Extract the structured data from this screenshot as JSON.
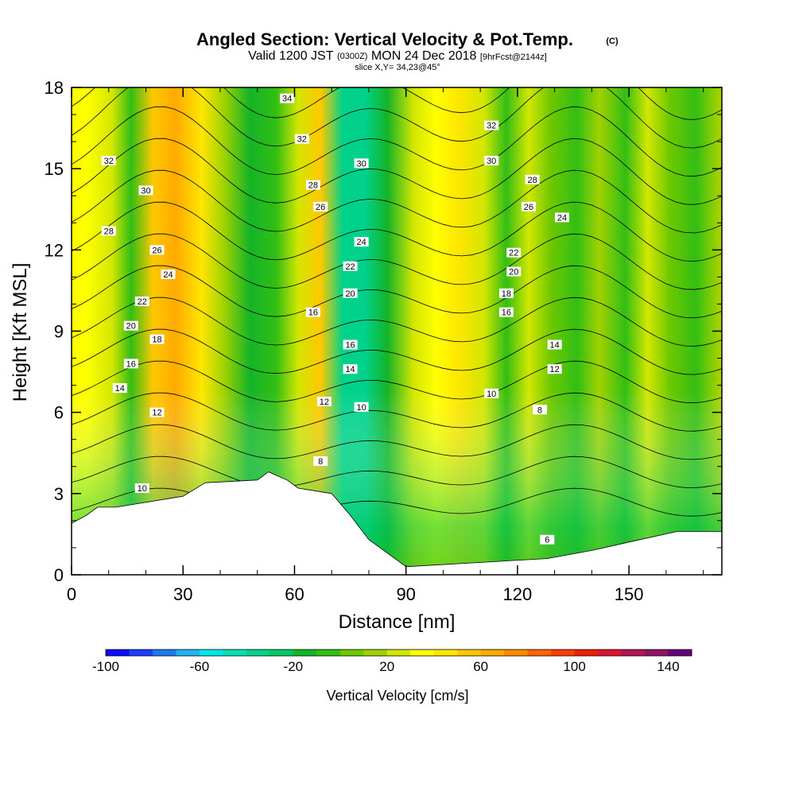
{
  "title": {
    "main": "Angled Section: Vertical Velocity & Pot.Temp.",
    "copyright": "(C)",
    "valid_prefix": "Valid 1200 JST",
    "valid_utc": "(0300Z)",
    "valid_date": "MON 24 Dec 2018",
    "forecast": "[9hrFcst@2144z]",
    "slice": "slice X,Y= 34,23@45°"
  },
  "chart_data": {
    "type": "heatmap",
    "description_fields": "filled vertical velocity with potential temperature contours over terrain",
    "xlabel": "Distance [nm]",
    "ylabel": "Height [Kft MSL]",
    "xlim": [
      0,
      175
    ],
    "ylim": [
      0,
      18
    ],
    "x_ticks": [
      0,
      30,
      60,
      90,
      120,
      150
    ],
    "y_ticks": [
      0,
      3,
      6,
      9,
      12,
      15,
      18
    ],
    "colorbar": {
      "label": "Vertical Velocity [cm/s]",
      "min": -100,
      "max": 150,
      "step": 10,
      "tick_values": [
        -100,
        -60,
        -20,
        20,
        60,
        100,
        140
      ],
      "colors": [
        "#0a0aff",
        "#1e3cff",
        "#1e78f0",
        "#1eb4f0",
        "#00e6e6",
        "#00e0b4",
        "#00d28c",
        "#00c864",
        "#14b428",
        "#32be14",
        "#6ec800",
        "#a0d200",
        "#d2e600",
        "#ffff00",
        "#ffe600",
        "#ffc800",
        "#ffaa00",
        "#ff8c00",
        "#ff6400",
        "#ff3c00",
        "#f01e00",
        "#dc1432",
        "#b41450",
        "#8c1464",
        "#640078"
      ]
    },
    "velocity_columns": [
      {
        "x": 4,
        "value": 30
      },
      {
        "x": 11,
        "value": 20
      },
      {
        "x": 16,
        "value": -10
      },
      {
        "x": 22,
        "value": 50
      },
      {
        "x": 28,
        "value": 60
      },
      {
        "x": 35,
        "value": 40
      },
      {
        "x": 41,
        "value": 10
      },
      {
        "x": 48,
        "value": -20
      },
      {
        "x": 55,
        "value": -10
      },
      {
        "x": 61,
        "value": 20
      },
      {
        "x": 67,
        "value": 50
      },
      {
        "x": 73,
        "value": -40
      },
      {
        "x": 79,
        "value": -40
      },
      {
        "x": 85,
        "value": -20
      },
      {
        "x": 92,
        "value": 20
      },
      {
        "x": 98,
        "value": 30
      },
      {
        "x": 104,
        "value": 40
      },
      {
        "x": 111,
        "value": 20
      },
      {
        "x": 117,
        "value": -10
      },
      {
        "x": 123,
        "value": 20
      },
      {
        "x": 129,
        "value": 0
      },
      {
        "x": 136,
        "value": -10
      },
      {
        "x": 142,
        "value": 10
      },
      {
        "x": 149,
        "value": -10
      },
      {
        "x": 155,
        "value": 20
      },
      {
        "x": 161,
        "value": 0
      },
      {
        "x": 168,
        "value": -10
      },
      {
        "x": 174,
        "value": 10
      }
    ],
    "terrain": [
      {
        "x": 0,
        "h": 1.9
      },
      {
        "x": 4,
        "h": 2.2
      },
      {
        "x": 7,
        "h": 2.5
      },
      {
        "x": 12,
        "h": 2.5
      },
      {
        "x": 30,
        "h": 2.9
      },
      {
        "x": 36,
        "h": 3.4
      },
      {
        "x": 50,
        "h": 3.5
      },
      {
        "x": 53,
        "h": 3.8
      },
      {
        "x": 58,
        "h": 3.5
      },
      {
        "x": 61,
        "h": 3.2
      },
      {
        "x": 70,
        "h": 3.0
      },
      {
        "x": 75,
        "h": 2.2
      },
      {
        "x": 80,
        "h": 1.3
      },
      {
        "x": 87,
        "h": 0.6
      },
      {
        "x": 90,
        "h": 0.3
      },
      {
        "x": 128,
        "h": 0.6
      },
      {
        "x": 140,
        "h": 0.9
      },
      {
        "x": 153,
        "h": 1.3
      },
      {
        "x": 163,
        "h": 1.6
      },
      {
        "x": 175,
        "h": 1.6
      }
    ],
    "contour_labels": [
      {
        "x": 58,
        "y": 17.6,
        "text": "34"
      },
      {
        "x": 10,
        "y": 15.3,
        "text": "32"
      },
      {
        "x": 62,
        "y": 16.1,
        "text": "32"
      },
      {
        "x": 113,
        "y": 16.6,
        "text": "32"
      },
      {
        "x": 20,
        "y": 14.2,
        "text": "30"
      },
      {
        "x": 78,
        "y": 15.2,
        "text": "30"
      },
      {
        "x": 113,
        "y": 15.3,
        "text": "30"
      },
      {
        "x": 65,
        "y": 14.4,
        "text": "28"
      },
      {
        "x": 124,
        "y": 14.6,
        "text": "28"
      },
      {
        "x": 10,
        "y": 12.7,
        "text": "28"
      },
      {
        "x": 67,
        "y": 13.6,
        "text": "26"
      },
      {
        "x": 123,
        "y": 13.6,
        "text": "26"
      },
      {
        "x": 23,
        "y": 12.0,
        "text": "26"
      },
      {
        "x": 78,
        "y": 12.3,
        "text": "24"
      },
      {
        "x": 132,
        "y": 13.2,
        "text": "24"
      },
      {
        "x": 26,
        "y": 11.1,
        "text": "24"
      },
      {
        "x": 119,
        "y": 11.9,
        "text": "22"
      },
      {
        "x": 75,
        "y": 11.4,
        "text": "22"
      },
      {
        "x": 19,
        "y": 10.1,
        "text": "22"
      },
      {
        "x": 119,
        "y": 11.2,
        "text": "20"
      },
      {
        "x": 75,
        "y": 10.4,
        "text": "20"
      },
      {
        "x": 16,
        "y": 9.2,
        "text": "20"
      },
      {
        "x": 117,
        "y": 10.4,
        "text": "18"
      },
      {
        "x": 23,
        "y": 8.7,
        "text": "18"
      },
      {
        "x": 65,
        "y": 9.7,
        "text": "16"
      },
      {
        "x": 117,
        "y": 9.7,
        "text": "16"
      },
      {
        "x": 75,
        "y": 8.5,
        "text": "16"
      },
      {
        "x": 16,
        "y": 7.8,
        "text": "16"
      },
      {
        "x": 130,
        "y": 8.5,
        "text": "14"
      },
      {
        "x": 75,
        "y": 7.6,
        "text": "14"
      },
      {
        "x": 13,
        "y": 6.9,
        "text": "14"
      },
      {
        "x": 130,
        "y": 7.6,
        "text": "12"
      },
      {
        "x": 68,
        "y": 6.4,
        "text": "12"
      },
      {
        "x": 23,
        "y": 6.0,
        "text": "12"
      },
      {
        "x": 113,
        "y": 6.7,
        "text": "10"
      },
      {
        "x": 78,
        "y": 6.2,
        "text": "10"
      },
      {
        "x": 19,
        "y": 3.2,
        "text": "10"
      },
      {
        "x": 126,
        "y": 6.1,
        "text": "8"
      },
      {
        "x": 67,
        "y": 4.2,
        "text": "8"
      },
      {
        "x": 128,
        "y": 1.3,
        "text": "6"
      }
    ]
  }
}
